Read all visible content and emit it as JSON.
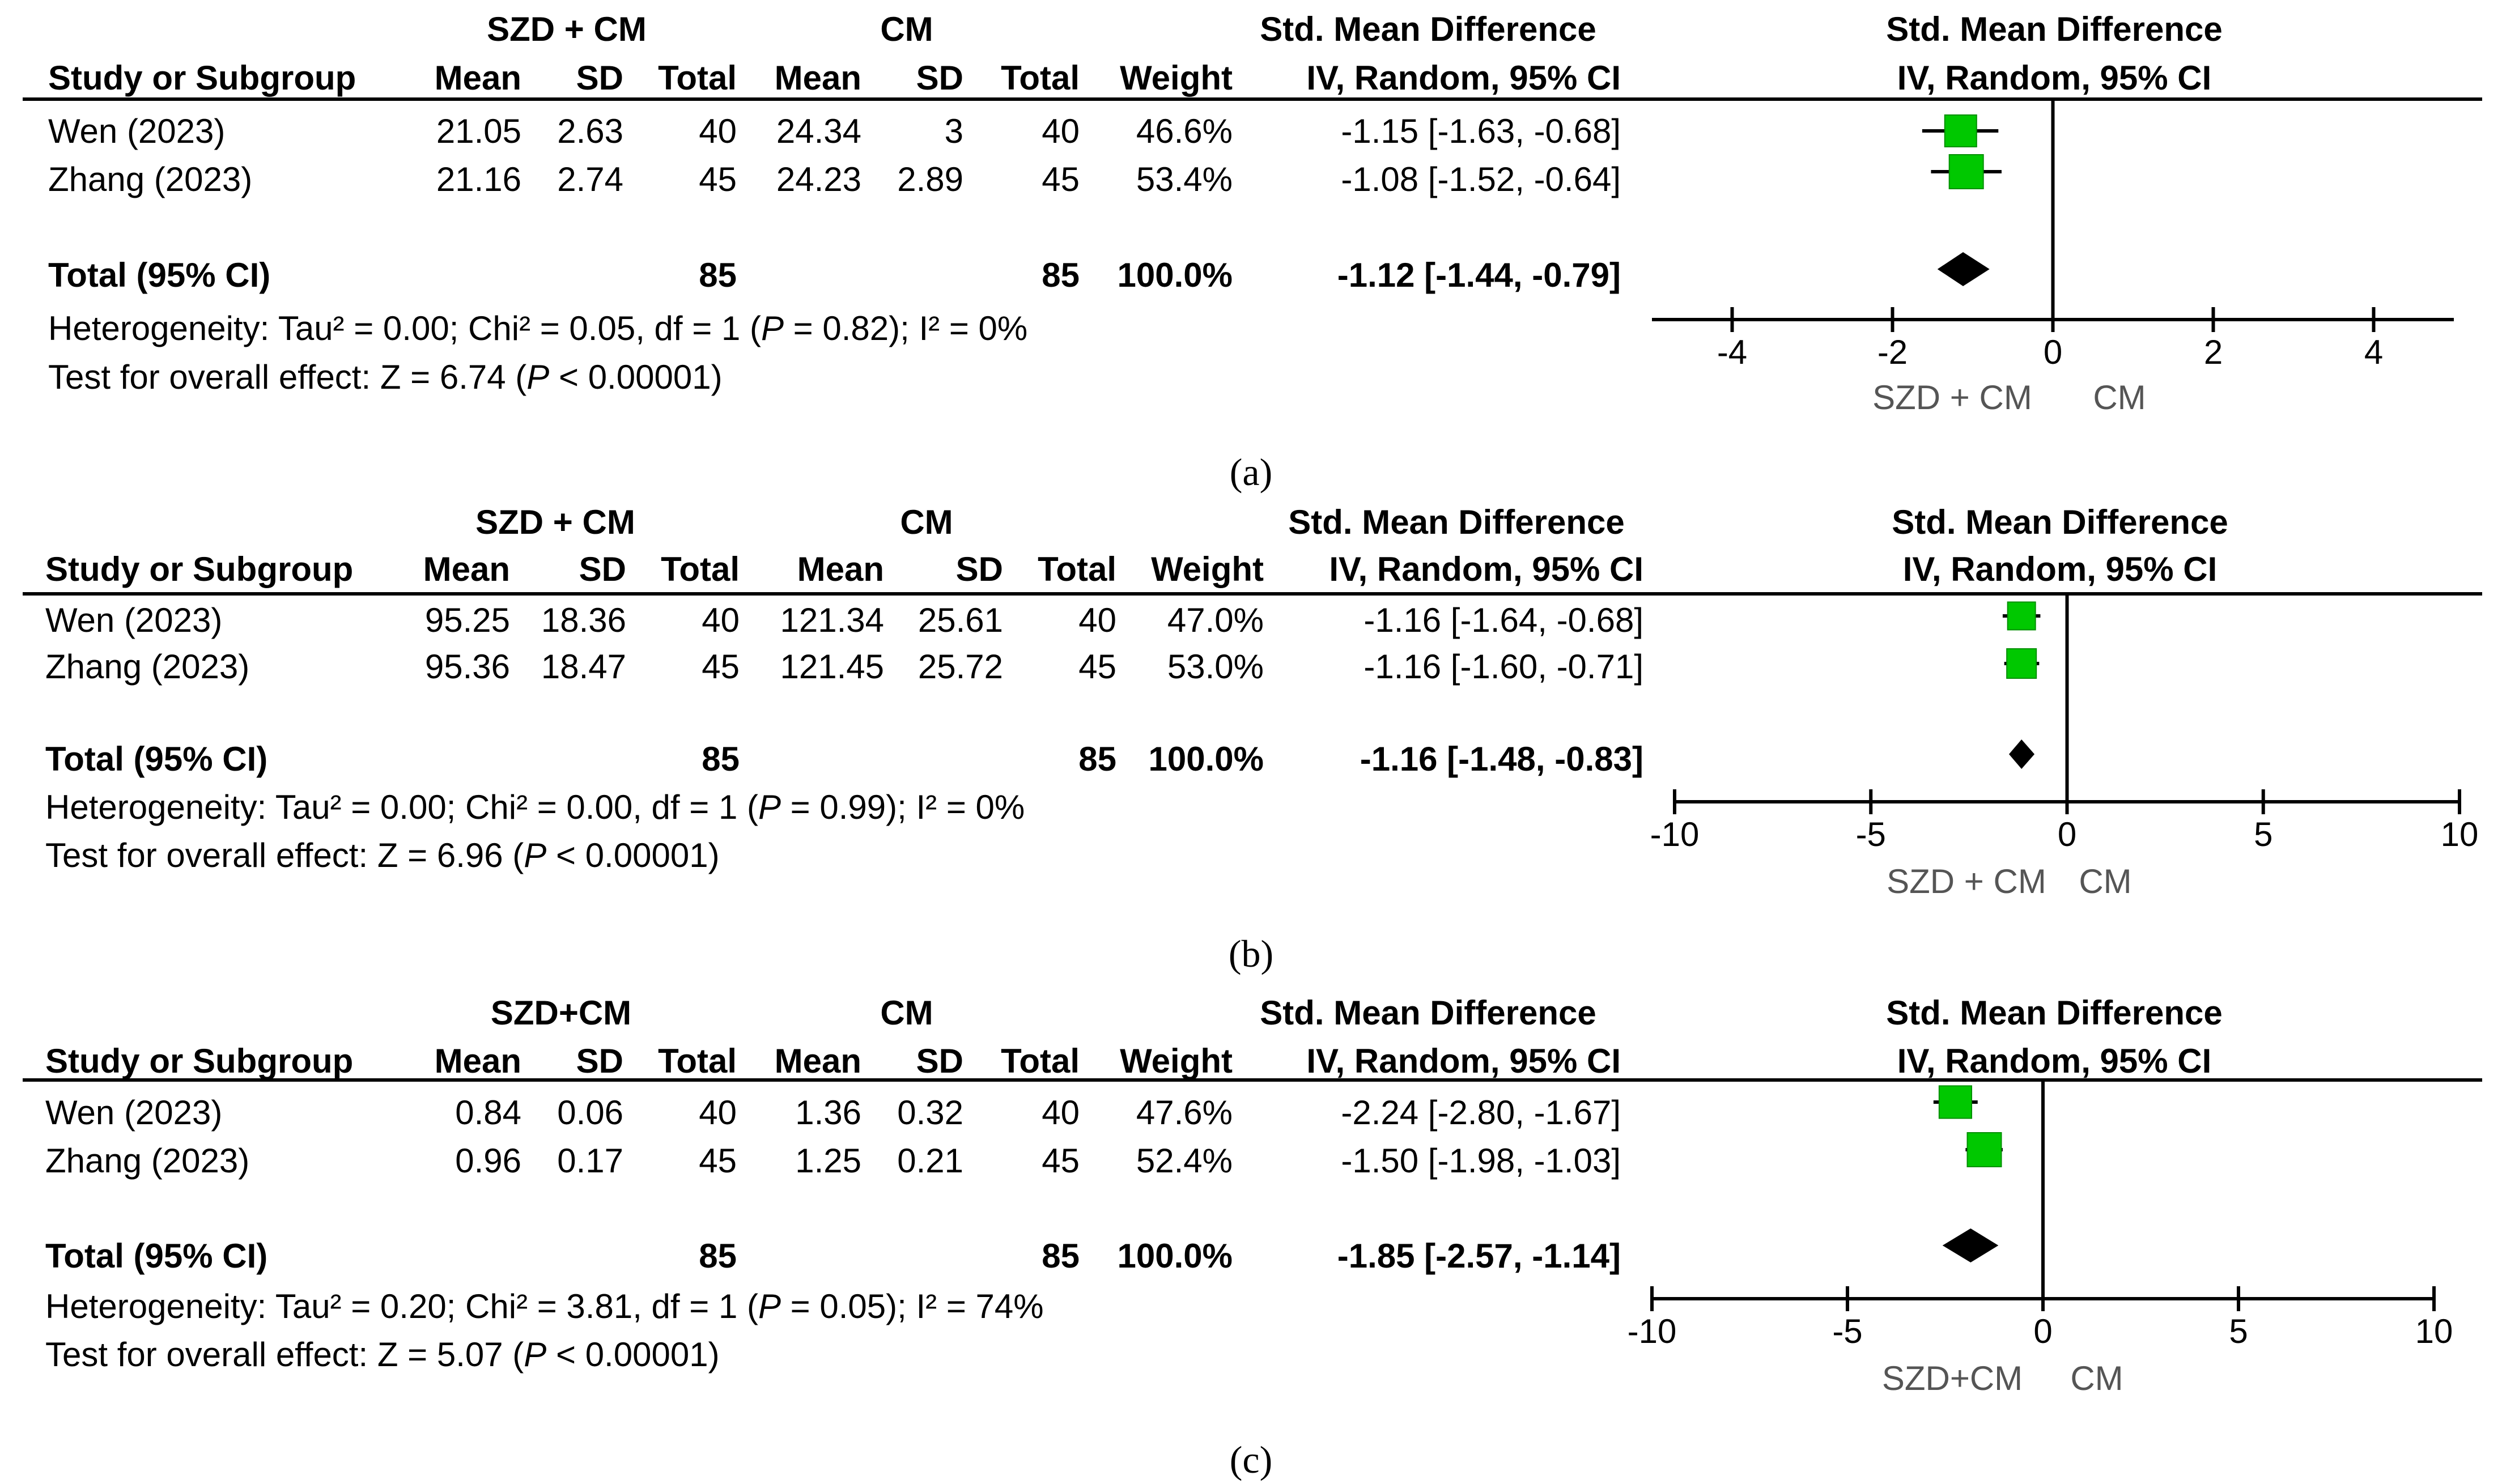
{
  "chart_data": [
    {
      "type": "forest",
      "panel_label": "(a)",
      "group1": "SZD + CM",
      "group2": "CM",
      "headers": {
        "study": "Study or Subgroup",
        "mean1": "Mean",
        "sd1": "SD",
        "total1": "Total",
        "mean2": "Mean",
        "sd2": "SD",
        "total2": "Total",
        "weight": "Weight",
        "effect_title": "Std. Mean Difference",
        "effect_sub": "IV, Random, 95% CI",
        "plot_title": "Std. Mean Difference",
        "plot_sub": "IV, Random, 95% CI"
      },
      "studies": [
        {
          "name": "Wen (2023)",
          "mean1": "21.05",
          "sd1": "2.63",
          "total1": "40",
          "mean2": "24.34",
          "sd2": "3",
          "total2": "40",
          "weight": "46.6%",
          "ci_text": "-1.15 [-1.63, -0.68]",
          "est": -1.15,
          "lo": -1.63,
          "hi": -0.68,
          "w": 46.6
        },
        {
          "name": "Zhang (2023)",
          "mean1": "21.16",
          "sd1": "2.74",
          "total1": "45",
          "mean2": "24.23",
          "sd2": "2.89",
          "total2": "45",
          "weight": "53.4%",
          "ci_text": "-1.08 [-1.52, -0.64]",
          "est": -1.08,
          "lo": -1.52,
          "hi": -0.64,
          "w": 53.4
        }
      ],
      "total": {
        "label": "Total (95% CI)",
        "total1": "85",
        "total2": "85",
        "weight": "100.0%",
        "ci_text": "-1.12 [-1.44, -0.79]",
        "est": -1.12,
        "lo": -1.44,
        "hi": -0.79
      },
      "heterogeneity": {
        "prefix": "Heterogeneity: Tau² = 0.00; Chi² = 0.05, df = 1 (",
        "p_label": "P",
        "suffix": " = 0.82); I² = 0%"
      },
      "overall": {
        "prefix": "Test for overall effect: Z = 6.74 (",
        "p_label": "P",
        "suffix": " < 0.00001)"
      },
      "axis": {
        "min": -5,
        "max": 5,
        "ticks": [
          -4,
          -2,
          0,
          2,
          4
        ],
        "tick_labels": [
          "-4",
          "-2",
          "0",
          "2",
          "4"
        ],
        "left_label": "SZD + CM",
        "right_label": "CM"
      }
    },
    {
      "type": "forest",
      "panel_label": "(b)",
      "group1": "SZD + CM",
      "group2": "CM",
      "headers": {
        "study": "Study or Subgroup",
        "mean1": "Mean",
        "sd1": "SD",
        "total1": "Total",
        "mean2": "Mean",
        "sd2": "SD",
        "total2": "Total",
        "weight": "Weight",
        "effect_title": "Std. Mean Difference",
        "effect_sub": "IV, Random, 95% CI",
        "plot_title": "Std. Mean Difference",
        "plot_sub": "IV, Random, 95% CI"
      },
      "studies": [
        {
          "name": "Wen (2023)",
          "mean1": "95.25",
          "sd1": "18.36",
          "total1": "40",
          "mean2": "121.34",
          "sd2": "25.61",
          "total2": "40",
          "weight": "47.0%",
          "ci_text": "-1.16 [-1.64, -0.68]",
          "est": -1.16,
          "lo": -1.64,
          "hi": -0.68,
          "w": 47.0
        },
        {
          "name": "Zhang (2023)",
          "mean1": "95.36",
          "sd1": "18.47",
          "total1": "45",
          "mean2": "121.45",
          "sd2": "25.72",
          "total2": "45",
          "weight": "53.0%",
          "ci_text": "-1.16 [-1.60, -0.71]",
          "est": -1.16,
          "lo": -1.6,
          "hi": -0.71,
          "w": 53.0
        }
      ],
      "total": {
        "label": "Total (95% CI)",
        "total1": "85",
        "total2": "85",
        "weight": "100.0%",
        "ci_text": "-1.16 [-1.48, -0.83]",
        "est": -1.16,
        "lo": -1.48,
        "hi": -0.83
      },
      "heterogeneity": {
        "prefix": "Heterogeneity: Tau² = 0.00; Chi² = 0.00, df = 1 (",
        "p_label": "P",
        "suffix": " = 0.99); I² = 0%"
      },
      "overall": {
        "prefix": "Test for overall effect: Z = 6.96 (",
        "p_label": "P",
        "suffix": " < 0.00001)"
      },
      "axis": {
        "min": -10,
        "max": 10,
        "ticks": [
          -10,
          -5,
          0,
          5,
          10
        ],
        "tick_labels": [
          "-10",
          "-5",
          "0",
          "5",
          "10"
        ],
        "left_label": "SZD + CM",
        "right_label": "CM"
      }
    },
    {
      "type": "forest",
      "panel_label": "(c)",
      "group1": "SZD+CM",
      "group2": "CM",
      "headers": {
        "study": "Study or Subgroup",
        "mean1": "Mean",
        "sd1": "SD",
        "total1": "Total",
        "mean2": "Mean",
        "sd2": "SD",
        "total2": "Total",
        "weight": "Weight",
        "effect_title": "Std. Mean Difference",
        "effect_sub": "IV, Random, 95% CI",
        "plot_title": "Std. Mean Difference",
        "plot_sub": "IV, Random, 95% CI"
      },
      "studies": [
        {
          "name": "Wen (2023)",
          "mean1": "0.84",
          "sd1": "0.06",
          "total1": "40",
          "mean2": "1.36",
          "sd2": "0.32",
          "total2": "40",
          "weight": "47.6%",
          "ci_text": "-2.24 [-2.80, -1.67]",
          "est": -2.24,
          "lo": -2.8,
          "hi": -1.67,
          "w": 47.6
        },
        {
          "name": "Zhang (2023)",
          "mean1": "0.96",
          "sd1": "0.17",
          "total1": "45",
          "mean2": "1.25",
          "sd2": "0.21",
          "total2": "45",
          "weight": "52.4%",
          "ci_text": "-1.50 [-1.98, -1.03]",
          "est": -1.5,
          "lo": -1.98,
          "hi": -1.03,
          "w": 52.4
        }
      ],
      "total": {
        "label": "Total (95% CI)",
        "total1": "85",
        "total2": "85",
        "weight": "100.0%",
        "ci_text": "-1.85 [-2.57, -1.14]",
        "est": -1.85,
        "lo": -2.57,
        "hi": -1.14
      },
      "heterogeneity": {
        "prefix": "Heterogeneity: Tau² = 0.20; Chi² = 3.81, df = 1 (",
        "p_label": "P",
        "suffix": " = 0.05); I² = 74%"
      },
      "overall": {
        "prefix": "Test for overall effect: Z = 5.07 (",
        "p_label": "P",
        "suffix": " < 0.00001)"
      },
      "axis": {
        "min": -10,
        "max": 10,
        "ticks": [
          -10,
          -5,
          0,
          5,
          10
        ],
        "tick_labels": [
          "-10",
          "-5",
          "0",
          "5",
          "10"
        ],
        "left_label": "SZD+CM",
        "right_label": "CM"
      }
    }
  ],
  "colors": {
    "marker": "#00c800",
    "marker_edge": "#009000",
    "line": "#000000",
    "diamond": "#000000"
  }
}
